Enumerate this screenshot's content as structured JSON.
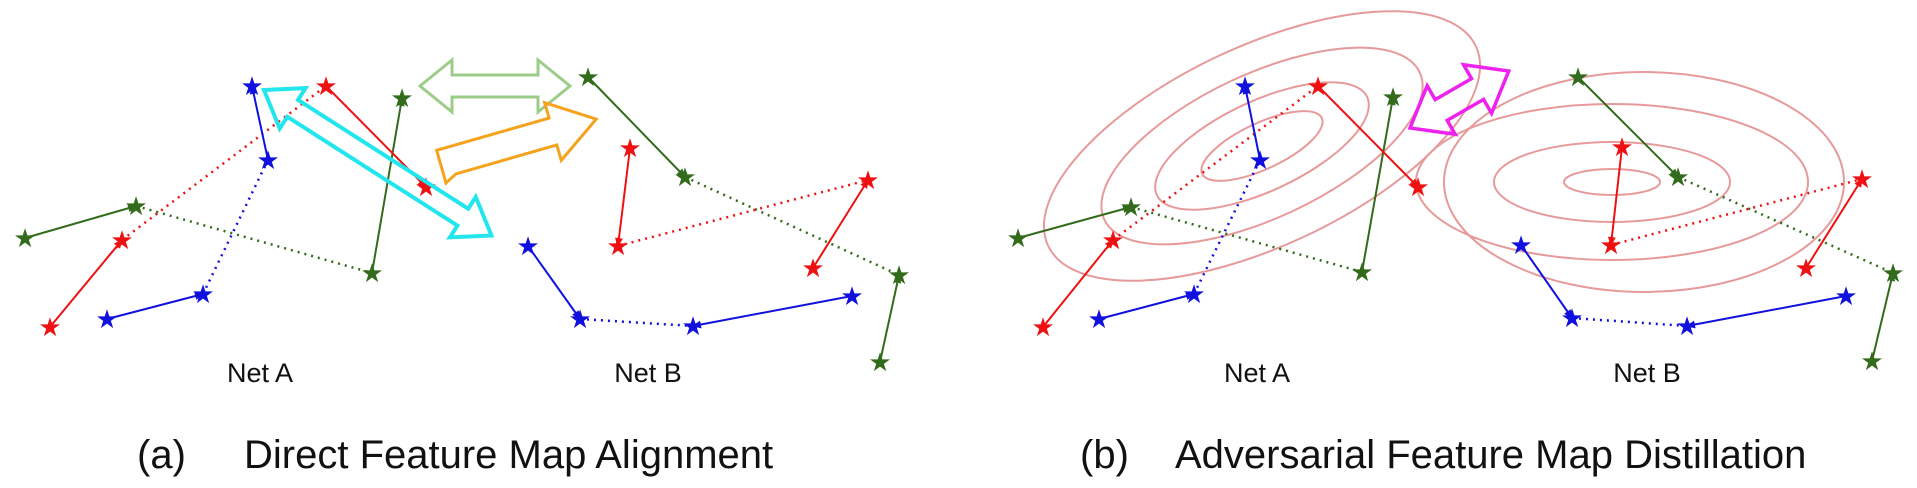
{
  "panel_a": {
    "net_a_label": "Net A",
    "net_b_label": "Net B",
    "caption_index": "(a)",
    "caption_text": "Direct Feature Map Alignment"
  },
  "panel_b": {
    "net_a_label": "Net A",
    "net_b_label": "Net B",
    "caption_index": "(b)",
    "caption_text": "Adversarial Feature Map Distillation"
  },
  "colors": {
    "red": "#ee1111",
    "blue": "#1111dd",
    "green": "#336b1c",
    "cyan": "#22e5ee",
    "light_green": "#9ccc88",
    "orange": "#f5a21c",
    "magenta": "#ee22ee",
    "contour": "#e79a9a"
  }
}
